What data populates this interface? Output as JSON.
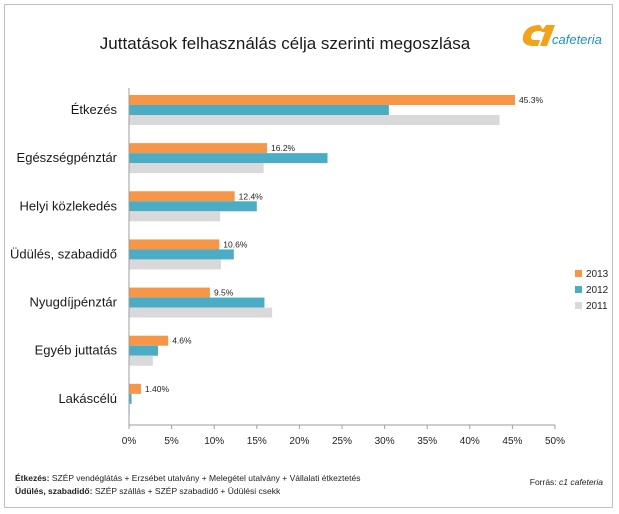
{
  "chart_data": {
    "type": "bar",
    "orientation": "horizontal",
    "title": "Juttatások felhasználás célja szerinti megoszlása",
    "categories": [
      "Étkezés",
      "Egészségpénztár",
      "Helyi közlekedés",
      "Üdülés, szabadidő",
      "Nyugdíjpénztár",
      "Egyéb juttatás",
      "Lakáscélú"
    ],
    "series": [
      {
        "name": "2013",
        "color": "#f79646",
        "values": [
          45.3,
          16.2,
          12.4,
          10.6,
          9.5,
          4.6,
          1.4
        ],
        "labels": [
          "45.3%",
          "16.2%",
          "12.4%",
          "10.6%",
          "9.5%",
          "4.6%",
          "1.40%"
        ]
      },
      {
        "name": "2012",
        "color": "#4bacc6",
        "values": [
          30.5,
          23.3,
          15.0,
          12.3,
          15.9,
          3.4,
          0.3
        ]
      },
      {
        "name": "2011",
        "color": "#d9d9d9",
        "values": [
          43.5,
          15.8,
          10.7,
          10.8,
          16.8,
          2.8,
          0.1
        ]
      }
    ],
    "xlim": [
      0,
      50
    ],
    "xticks": [
      "0%",
      "5%",
      "10%",
      "15%",
      "20%",
      "25%",
      "30%",
      "35%",
      "40%",
      "45%",
      "50%"
    ],
    "grid": false,
    "legend_position": "right"
  },
  "logo": {
    "mark": "c1",
    "text": "cafeteria"
  },
  "footnotes": [
    {
      "bold": "Étkezés:",
      "text": " SZÉP vendéglátás + Erzsébet utalvány + Melegétel utalvány + Vállalati étkeztetés"
    },
    {
      "bold": "Üdülés, szabadidő:",
      "text": " SZÉP szállás + SZÉP szabadidő + Üdülési csekk"
    }
  ],
  "source": {
    "label": "Forrás:",
    "name": "c1 cafeteria"
  }
}
